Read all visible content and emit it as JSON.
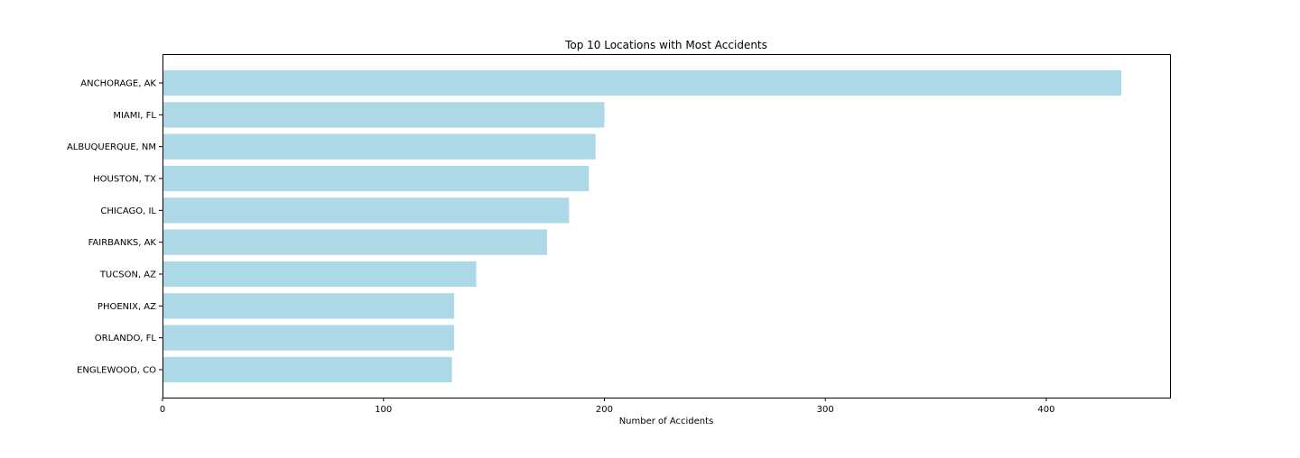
{
  "chart_data": {
    "type": "bar",
    "orientation": "horizontal",
    "title": "Top 10 Locations with Most Accidents",
    "xlabel": "Number of Accidents",
    "ylabel": "",
    "xlim": [
      0,
      456
    ],
    "xticks": [
      0,
      100,
      200,
      300,
      400
    ],
    "xtick_labels": [
      "0",
      "100",
      "200",
      "300",
      "400"
    ],
    "grid": false,
    "legend": "none",
    "bar_color": "#add8e6",
    "categories": [
      "ANCHORAGE, AK",
      "MIAMI, FL",
      "ALBUQUERQUE, NM",
      "HOUSTON, TX",
      "CHICAGO, IL",
      "FAIRBANKS, AK",
      "TUCSON, AZ",
      "PHOENIX, AZ",
      "ORLANDO, FL",
      "ENGLEWOOD, CO"
    ],
    "values": [
      434,
      200,
      196,
      193,
      184,
      174,
      142,
      132,
      132,
      131
    ]
  }
}
